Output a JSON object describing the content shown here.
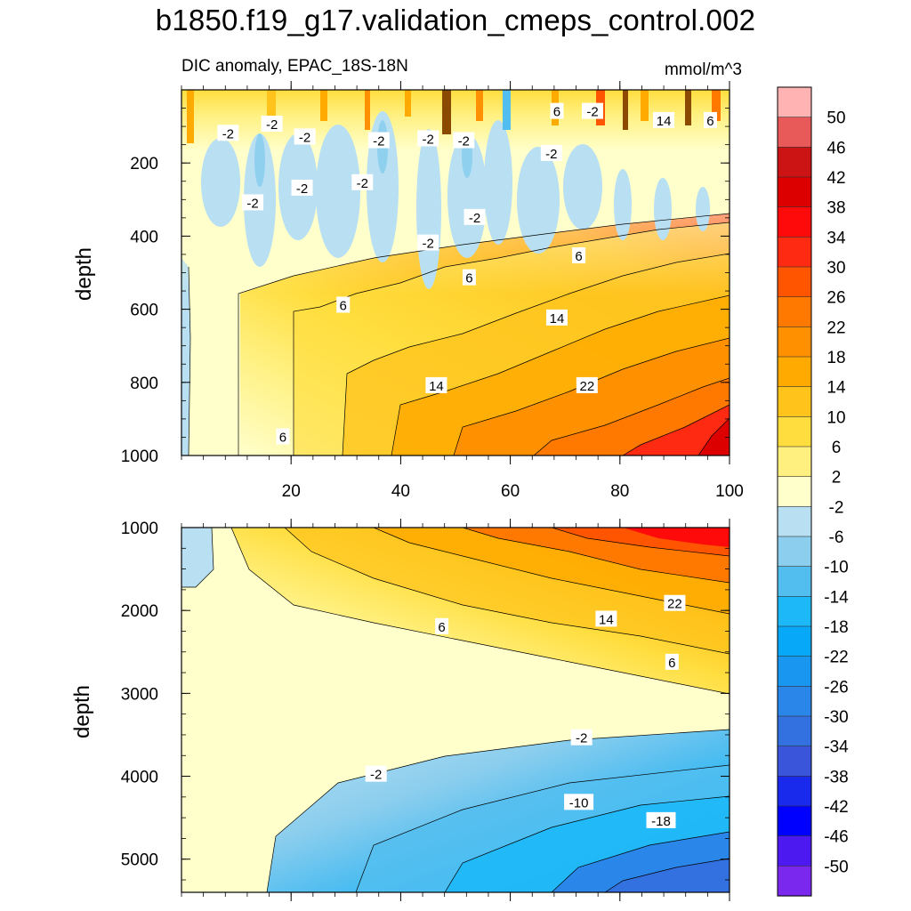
{
  "chart_data": {
    "type": "contour",
    "title": "b1850.f19_g17.validation_cmeps_control.002",
    "subtitle_left": "DIC anomaly, EPAC_18S-18N",
    "subtitle_right": "mmol/m^3",
    "ylabel": "depth",
    "colorbar": {
      "levels": [
        "50",
        "46",
        "42",
        "38",
        "34",
        "30",
        "26",
        "22",
        "18",
        "14",
        "10",
        "6",
        "2",
        "-2",
        "-6",
        "-10",
        "-14",
        "-18",
        "-22",
        "-26",
        "-30",
        "-34",
        "-38",
        "-42",
        "-46",
        "-50"
      ],
      "colors": [
        "#FFB3B3",
        "#E85A5A",
        "#CC1414",
        "#DD0000",
        "#FF0A0A",
        "#FF2A12",
        "#FF5500",
        "#FF7800",
        "#FF9100",
        "#FFAA00",
        "#FFC31C",
        "#FFDD3E",
        "#FFF07F",
        "#FFFFCC",
        "#B8E0F2",
        "#8CCEEE",
        "#52BEF0",
        "#1DB8F8",
        "#08A8F8",
        "#1896F0",
        "#2A86E8",
        "#3370E0",
        "#3A55DA",
        "#1A2AEC",
        "#0000FF",
        "#4C1AF0",
        "#7B28EE"
      ]
    },
    "panels": [
      {
        "name": "upper",
        "ylim": [
          0,
          1000
        ],
        "xlim": [
          0,
          100
        ],
        "yticks": [
          200,
          400,
          600,
          800,
          1000
        ],
        "xticks": [
          20,
          40,
          60,
          80,
          100
        ],
        "contour_labels": [
          {
            "text": "-2",
            "x": 8.5,
            "y": 120
          },
          {
            "text": "-2",
            "x": 16.5,
            "y": 95
          },
          {
            "text": "-2",
            "x": 22.5,
            "y": 130
          },
          {
            "text": "-2",
            "x": 36,
            "y": 140
          },
          {
            "text": "-2",
            "x": 45,
            "y": 135
          },
          {
            "text": "-2",
            "x": 51.5,
            "y": 140
          },
          {
            "text": "-2",
            "x": 67.5,
            "y": 175
          },
          {
            "text": "-2",
            "x": 75,
            "y": 60
          },
          {
            "text": "-2",
            "x": 22,
            "y": 270
          },
          {
            "text": "-2",
            "x": 13,
            "y": 310
          },
          {
            "text": "-2",
            "x": 33,
            "y": 255
          },
          {
            "text": "-2",
            "x": 53.5,
            "y": 350
          },
          {
            "text": "-2",
            "x": 45,
            "y": 420
          },
          {
            "text": "6",
            "x": 68.5,
            "y": 60
          },
          {
            "text": "14",
            "x": 88,
            "y": 85
          },
          {
            "text": "6",
            "x": 96.5,
            "y": 85
          },
          {
            "text": "6",
            "x": 72.5,
            "y": 455
          },
          {
            "text": "6",
            "x": 52.5,
            "y": 515
          },
          {
            "text": "6",
            "x": 29.5,
            "y": 590
          },
          {
            "text": "14",
            "x": 68.5,
            "y": 625
          },
          {
            "text": "14",
            "x": 46.5,
            "y": 810
          },
          {
            "text": "22",
            "x": 74,
            "y": 810
          },
          {
            "text": "6",
            "x": 18.5,
            "y": 950
          }
        ]
      },
      {
        "name": "lower",
        "ylim": [
          1000,
          5400
        ],
        "xlim": [
          0,
          100
        ],
        "yticks": [
          1000,
          2000,
          3000,
          4000,
          5000
        ],
        "contour_labels": [
          {
            "text": "22",
            "x": 90,
            "y": 1920
          },
          {
            "text": "14",
            "x": 77.5,
            "y": 2110
          },
          {
            "text": "6",
            "x": 47.5,
            "y": 2200
          },
          {
            "text": "6",
            "x": 89.5,
            "y": 2630
          },
          {
            "text": "-2",
            "x": 73,
            "y": 3540
          },
          {
            "text": "-2",
            "x": 35.5,
            "y": 3980
          },
          {
            "text": "-10",
            "x": 72.5,
            "y": 4320
          },
          {
            "text": "-18",
            "x": 87.5,
            "y": 4540
          }
        ]
      }
    ]
  }
}
